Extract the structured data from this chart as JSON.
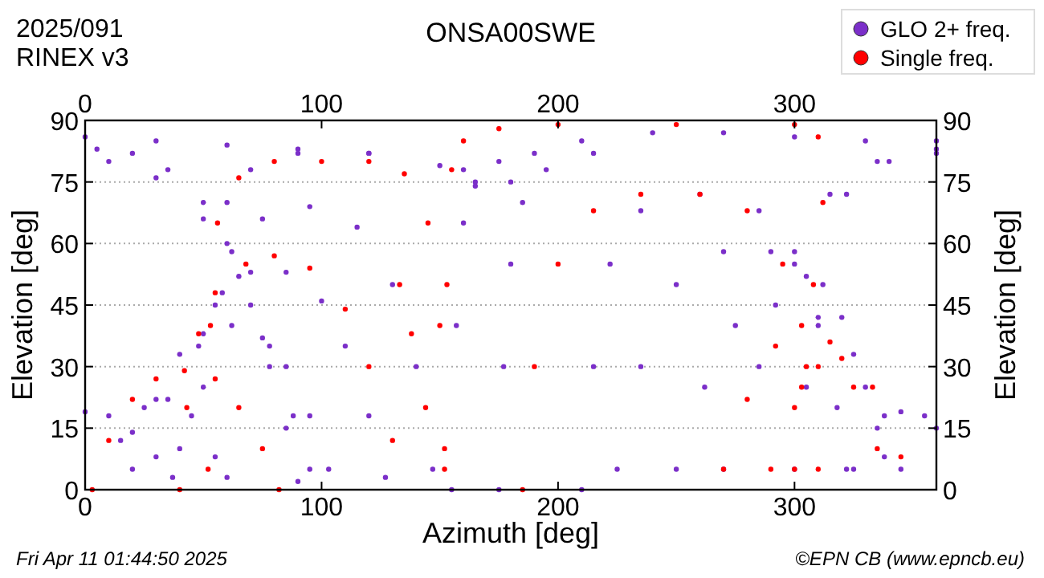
{
  "chart_data": {
    "type": "scatter",
    "title": "ONSA00SWE",
    "xlabel": "Azimuth [deg]",
    "ylabel": "Elevation [deg]",
    "y2label": "Elevation [deg]",
    "annotations": [
      "2025/091",
      "RINEX v3",
      "Fri Apr 11 01:44:50 2025",
      "©EPN CB (www.epncb.eu)"
    ],
    "xlim": [
      0,
      360
    ],
    "xticks": [
      0,
      100,
      200,
      300
    ],
    "x2lim": [
      0,
      360
    ],
    "x2ticks": [
      0,
      100,
      200,
      300
    ],
    "ylim": [
      0,
      90
    ],
    "yticks": [
      0,
      15,
      30,
      45,
      60,
      75,
      90
    ],
    "y2lim": [
      0,
      90
    ],
    "y2ticks": [
      0,
      15,
      30,
      45,
      60,
      75,
      90
    ],
    "grid": "y",
    "legend": "top right",
    "marker": "circle",
    "series": [
      {
        "name": "GLO 2+ freq.",
        "color": "#7b2fc9",
        "x": [
          20,
          30,
          40,
          50,
          62,
          75,
          85,
          95,
          103,
          40,
          48,
          58,
          70,
          85,
          100,
          110,
          120,
          127,
          50,
          55,
          62,
          75,
          95,
          115,
          130,
          140,
          147,
          5,
          20,
          35,
          50,
          60,
          70,
          78,
          85,
          90,
          10,
          30,
          50,
          65,
          78,
          88,
          95,
          0,
          30,
          60,
          90,
          120,
          150,
          165,
          0,
          10,
          20,
          30,
          37,
          15,
          25,
          35,
          45,
          55,
          60,
          60,
          70,
          90,
          120,
          160,
          210,
          215,
          222,
          235,
          260,
          285,
          300,
          310,
          318,
          322,
          225,
          235,
          250,
          270,
          290,
          305,
          320,
          330,
          338,
          250,
          262,
          275,
          292,
          310,
          325,
          338,
          345,
          270,
          285,
          300,
          315,
          335,
          360,
          300,
          305,
          312,
          322,
          340,
          360,
          325,
          335,
          345,
          355,
          360,
          180,
          190,
          210,
          240,
          270,
          300,
          330,
          360,
          175,
          177,
          180,
          185,
          195,
          215,
          155,
          157,
          160,
          165,
          175
        ],
        "values": [
          5,
          22,
          33,
          38,
          40,
          37,
          30,
          18,
          5,
          10,
          35,
          48,
          53,
          53,
          46,
          35,
          18,
          3,
          25,
          45,
          58,
          66,
          69,
          64,
          50,
          30,
          5,
          83,
          82,
          78,
          70,
          60,
          45,
          30,
          15,
          2,
          80,
          76,
          66,
          52,
          35,
          18,
          5,
          86,
          85,
          84,
          83,
          82,
          79,
          74,
          19,
          18,
          14,
          8,
          3,
          12,
          20,
          22,
          18,
          8,
          3,
          70,
          78,
          82,
          82,
          78,
          0,
          30,
          55,
          68,
          72,
          68,
          58,
          40,
          20,
          5,
          5,
          30,
          50,
          58,
          58,
          52,
          42,
          25,
          8,
          5,
          25,
          40,
          45,
          42,
          33,
          18,
          5,
          5,
          30,
          55,
          72,
          80,
          83,
          5,
          25,
          50,
          72,
          80,
          82,
          5,
          15,
          19,
          18,
          15,
          75,
          82,
          85,
          87,
          87,
          86,
          85,
          85,
          0,
          30,
          55,
          70,
          78,
          82,
          0,
          40,
          65,
          75,
          80
        ]
      },
      {
        "name": "Single freq.",
        "color": "#ff0000",
        "x": [
          3,
          10,
          20,
          30,
          42,
          55,
          65,
          75,
          82,
          40,
          43,
          48,
          55,
          68,
          80,
          95,
          110,
          120,
          130,
          52,
          53,
          56,
          65,
          80,
          100,
          120,
          135,
          145,
          150,
          152,
          152,
          153,
          155,
          160,
          175,
          200,
          250,
          300,
          310,
          312,
          308,
          303,
          300,
          185,
          190,
          200,
          215,
          235,
          260,
          280,
          295,
          305,
          310,
          270,
          280,
          292,
          303,
          315,
          325,
          335,
          290,
          300,
          310,
          320,
          333,
          345,
          133,
          138,
          144
        ],
        "values": [
          0,
          12,
          22,
          27,
          29,
          27,
          20,
          10,
          0,
          0,
          20,
          38,
          48,
          55,
          57,
          54,
          44,
          30,
          12,
          5,
          40,
          65,
          76,
          80,
          80,
          80,
          77,
          65,
          40,
          5,
          10,
          50,
          78,
          85,
          88,
          89,
          89,
          89,
          86,
          70,
          50,
          25,
          5,
          0,
          30,
          55,
          68,
          72,
          72,
          68,
          55,
          30,
          5,
          5,
          22,
          35,
          40,
          36,
          25,
          10,
          5,
          20,
          30,
          32,
          25,
          8,
          50,
          38,
          20
        ]
      }
    ]
  }
}
